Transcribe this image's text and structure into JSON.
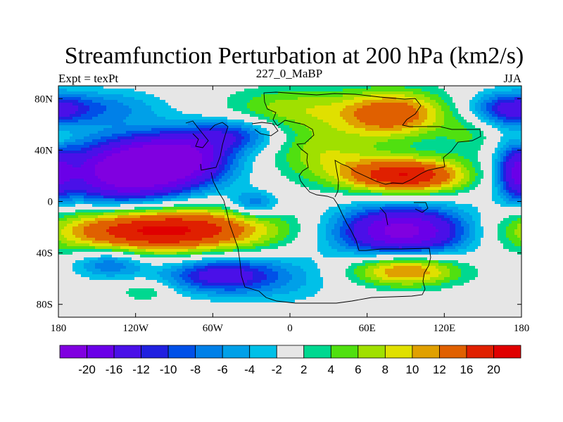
{
  "chart_data": {
    "type": "heatmap",
    "title": "Streamfunction Perturbation at 200 hPa (km2/s)",
    "left_label": "Expt = texPt",
    "center_label": "227_0_MaBP",
    "right_label": "JJA",
    "x_range": [
      -180,
      180
    ],
    "y_range": [
      -90,
      90
    ],
    "x_ticks": [
      {
        "value": -180,
        "label": "180"
      },
      {
        "value": -120,
        "label": "120W"
      },
      {
        "value": -60,
        "label": "60W"
      },
      {
        "value": 0,
        "label": "0"
      },
      {
        "value": 60,
        "label": "60E"
      },
      {
        "value": 120,
        "label": "120E"
      },
      {
        "value": 180,
        "label": "180"
      }
    ],
    "y_ticks": [
      {
        "value": 80,
        "label": "80N"
      },
      {
        "value": 40,
        "label": "40N"
      },
      {
        "value": 0,
        "label": "0"
      },
      {
        "value": -40,
        "label": "40S"
      },
      {
        "value": -80,
        "label": "80S"
      }
    ],
    "levels": [
      -20,
      -16,
      -12,
      -10,
      -8,
      -6,
      -4,
      -2,
      2,
      4,
      6,
      8,
      10,
      12,
      16,
      20
    ],
    "level_labels": [
      "-20",
      "-16",
      "-12",
      "-10",
      "-8",
      "-6",
      "-4",
      "-2",
      "2",
      "4",
      "6",
      "8",
      "10",
      "12",
      "16",
      "20"
    ],
    "colors": [
      "#8000e0",
      "#6a00e8",
      "#4a10e8",
      "#2020e0",
      "#0050e8",
      "#0080e8",
      "#00a0e8",
      "#00c0e8",
      "#e6e6e6",
      "#00d890",
      "#50e010",
      "#a0e000",
      "#e0e000",
      "#e0a000",
      "#e06000",
      "#e02000",
      "#e00000"
    ],
    "features": [
      {
        "lon": -130,
        "lat": 22,
        "rx": 38,
        "ry": 18,
        "v": -22
      },
      {
        "lon": -88,
        "lat": 33,
        "rx": 30,
        "ry": 14,
        "v": -18
      },
      {
        "lon": -45,
        "lat": 52,
        "rx": 25,
        "ry": 9,
        "v": -10
      },
      {
        "lon": -140,
        "lat": 73,
        "rx": 30,
        "ry": 10,
        "v": -6
      },
      {
        "lon": 172,
        "lat": 72,
        "rx": 22,
        "ry": 9,
        "v": -13
      },
      {
        "lon": 176,
        "lat": 22,
        "rx": 10,
        "ry": 15,
        "v": -11
      },
      {
        "lon": -28,
        "lat": -2,
        "rx": 14,
        "ry": 7,
        "v": -9
      },
      {
        "lon": 88,
        "lat": -23,
        "rx": 38,
        "ry": 14,
        "v": -22
      },
      {
        "lon": -55,
        "lat": -57,
        "rx": 30,
        "ry": 10,
        "v": -14
      },
      {
        "lon": -140,
        "lat": -48,
        "rx": 20,
        "ry": 8,
        "v": -9
      },
      {
        "lon": -5,
        "lat": -60,
        "rx": 30,
        "ry": 14,
        "v": -4
      },
      {
        "lon": -100,
        "lat": -22,
        "rx": 60,
        "ry": 13,
        "v": 22
      },
      {
        "lon": 80,
        "lat": 68,
        "rx": 30,
        "ry": 13,
        "v": 15
      },
      {
        "lon": 90,
        "lat": 20,
        "rx": 35,
        "ry": 10,
        "v": 20
      },
      {
        "lon": 25,
        "lat": 38,
        "rx": 30,
        "ry": 14,
        "v": 7
      },
      {
        "lon": 0,
        "lat": 72,
        "rx": 35,
        "ry": 12,
        "v": 7
      },
      {
        "lon": 90,
        "lat": -53,
        "rx": 30,
        "ry": 9,
        "v": 14
      },
      {
        "lon": -112,
        "lat": -70,
        "rx": 15,
        "ry": 6,
        "v": 4
      },
      {
        "lon": -178,
        "lat": 50,
        "rx": 6,
        "ry": 4,
        "v": 3
      },
      {
        "lon": 140,
        "lat": 50,
        "rx": 15,
        "ry": 12,
        "v": 4
      }
    ]
  }
}
